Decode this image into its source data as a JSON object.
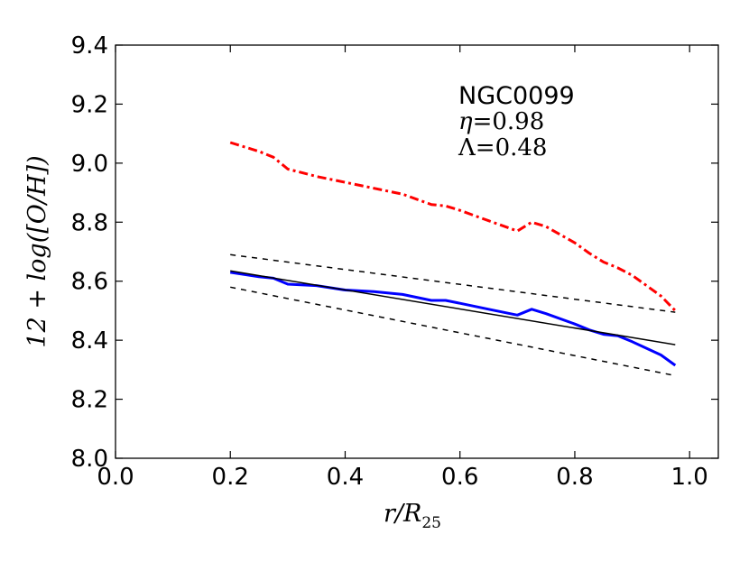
{
  "chart_data": {
    "type": "line",
    "title": "",
    "xlabel": "r/R",
    "xlabel_sub": "25",
    "ylabel": "12 + log([O/H])",
    "xlim": [
      0.0,
      1.05
    ],
    "ylim": [
      8.0,
      9.4
    ],
    "xticks": [
      "0.0",
      "0.2",
      "0.4",
      "0.6",
      "0.8",
      "1.0"
    ],
    "xtick_values": [
      0.0,
      0.2,
      0.4,
      0.6,
      0.8,
      1.0
    ],
    "yticks": [
      "8.0",
      "8.2",
      "8.4",
      "8.6",
      "8.8",
      "9.0",
      "9.2",
      "9.4"
    ],
    "ytick_values": [
      8.0,
      8.2,
      8.4,
      8.6,
      8.8,
      9.0,
      9.2,
      9.4
    ],
    "grid": false,
    "annotation": {
      "galaxy": "NGC0099",
      "eta_symbol": "η",
      "eta_value": "=0.98",
      "lambda_symbol": "Λ",
      "lambda_value": "=0.48"
    },
    "series": [
      {
        "name": "profile",
        "color": "#0000ff",
        "style": "solid",
        "width": 3,
        "x": [
          0.2,
          0.25,
          0.275,
          0.3,
          0.35,
          0.4,
          0.45,
          0.5,
          0.55,
          0.575,
          0.6,
          0.65,
          0.7,
          0.725,
          0.75,
          0.8,
          0.825,
          0.85,
          0.875,
          0.9,
          0.95,
          0.975
        ],
        "y": [
          8.63,
          8.615,
          8.61,
          8.59,
          8.585,
          8.57,
          8.565,
          8.555,
          8.535,
          8.535,
          8.525,
          8.505,
          8.485,
          8.505,
          8.49,
          8.455,
          8.435,
          8.42,
          8.415,
          8.395,
          8.35,
          8.315
        ]
      },
      {
        "name": "red-dashdot",
        "color": "#ff0000",
        "style": "dashdot",
        "width": 3,
        "x": [
          0.2,
          0.25,
          0.275,
          0.3,
          0.35,
          0.4,
          0.45,
          0.5,
          0.55,
          0.575,
          0.6,
          0.65,
          0.7,
          0.725,
          0.75,
          0.8,
          0.825,
          0.85,
          0.875,
          0.9,
          0.95,
          0.975
        ],
        "y": [
          9.07,
          9.04,
          9.02,
          8.98,
          8.955,
          8.935,
          8.915,
          8.895,
          8.86,
          8.855,
          8.84,
          8.805,
          8.77,
          8.8,
          8.785,
          8.73,
          8.695,
          8.665,
          8.645,
          8.62,
          8.55,
          8.5
        ]
      },
      {
        "name": "fit",
        "color": "#000000",
        "style": "solid",
        "width": 1.5,
        "x": [
          0.2,
          0.975
        ],
        "y": [
          8.635,
          8.385
        ]
      },
      {
        "name": "fit-upper",
        "color": "#000000",
        "style": "dashed",
        "width": 1.5,
        "x": [
          0.2,
          0.975
        ],
        "y": [
          8.69,
          8.495
        ]
      },
      {
        "name": "fit-lower",
        "color": "#000000",
        "style": "dashed",
        "width": 1.5,
        "x": [
          0.2,
          0.975
        ],
        "y": [
          8.58,
          8.28
        ]
      }
    ]
  }
}
